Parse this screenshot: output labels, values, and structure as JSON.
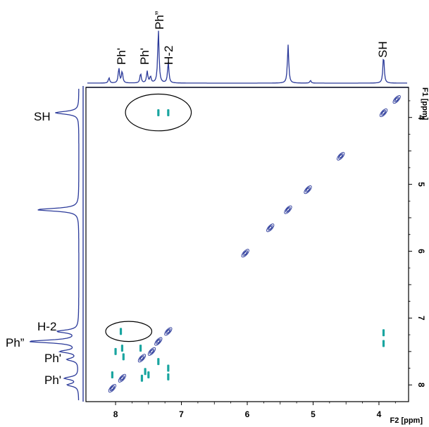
{
  "chart_data": {
    "type": "scatter",
    "subtype": "2D NMR contour spectrum (NOESY-style) with 1D projections",
    "x_axis": {
      "label": "F2 [ppm]",
      "reversed": true,
      "ticks": [
        8,
        7,
        6,
        5,
        4
      ],
      "tick_labels": [
        "8",
        "7",
        "6",
        "5",
        "4"
      ],
      "range": [
        8.45,
        3.55
      ]
    },
    "y_axis": {
      "label": "F1 [ppm]",
      "reversed": true,
      "position": "right",
      "ticks": [
        4,
        5,
        6,
        7,
        8
      ],
      "tick_labels": [
        "4",
        "5",
        "6",
        "7",
        "8"
      ],
      "range": [
        3.55,
        8.25
      ]
    },
    "top_trace_labels": [
      "Ph'",
      "Ph'",
      "Ph”",
      "H-2",
      "SH"
    ],
    "left_trace_labels": [
      "SH",
      "H-2",
      "Ph”",
      "Ph'",
      "Ph'"
    ],
    "diagonal_peaks": [
      {
        "x": 3.73,
        "y": 3.73
      },
      {
        "x": 3.93,
        "y": 3.93
      },
      {
        "x": 4.58,
        "y": 4.58
      },
      {
        "x": 5.08,
        "y": 5.08
      },
      {
        "x": 5.38,
        "y": 5.38
      },
      {
        "x": 5.65,
        "y": 5.65
      },
      {
        "x": 6.03,
        "y": 6.03
      },
      {
        "x": 7.2,
        "y": 7.2
      },
      {
        "x": 7.35,
        "y": 7.35
      },
      {
        "x": 7.45,
        "y": 7.5
      },
      {
        "x": 7.6,
        "y": 7.6
      },
      {
        "x": 7.9,
        "y": 7.9
      },
      {
        "x": 8.05,
        "y": 8.05
      }
    ],
    "cross_peaks": [
      {
        "x": 7.35,
        "y": 3.93
      },
      {
        "x": 7.2,
        "y": 3.93
      },
      {
        "x": 7.92,
        "y": 7.2
      },
      {
        "x": 3.93,
        "y": 7.22
      },
      {
        "x": 3.93,
        "y": 7.38
      },
      {
        "x": 8.0,
        "y": 7.5
      },
      {
        "x": 7.9,
        "y": 7.45
      },
      {
        "x": 7.88,
        "y": 7.58
      },
      {
        "x": 7.62,
        "y": 7.45
      },
      {
        "x": 7.6,
        "y": 7.9
      },
      {
        "x": 7.55,
        "y": 7.8
      },
      {
        "x": 7.5,
        "y": 7.85
      },
      {
        "x": 7.2,
        "y": 7.88
      },
      {
        "x": 7.2,
        "y": 7.75
      },
      {
        "x": 7.35,
        "y": 7.65
      },
      {
        "x": 8.05,
        "y": 7.85
      }
    ],
    "circled_regions": [
      {
        "x_range": [
          7.85,
          6.85
        ],
        "y_range": [
          3.65,
          4.2
        ]
      },
      {
        "x_range": [
          8.15,
          7.45
        ],
        "y_range": [
          7.05,
          7.35
        ]
      }
    ],
    "top_projection_peaks": [
      {
        "ppm": 8.1,
        "height": 0.1
      },
      {
        "ppm": 7.95,
        "height": 0.28
      },
      {
        "ppm": 7.9,
        "height": 0.22
      },
      {
        "ppm": 7.62,
        "height": 0.18
      },
      {
        "ppm": 7.52,
        "height": 0.22
      },
      {
        "ppm": 7.47,
        "height": 0.12
      },
      {
        "ppm": 7.35,
        "height": 1.0
      },
      {
        "ppm": 7.2,
        "height": 0.4
      },
      {
        "ppm": 5.38,
        "height": 0.72
      },
      {
        "ppm": 5.04,
        "height": 0.05
      },
      {
        "ppm": 3.93,
        "height": 0.52
      }
    ],
    "left_projection_peaks": [
      {
        "ppm": 3.93,
        "height": 0.48
      },
      {
        "ppm": 5.38,
        "height": 0.85
      },
      {
        "ppm": 7.2,
        "height": 0.42
      },
      {
        "ppm": 7.35,
        "height": 1.0
      },
      {
        "ppm": 7.5,
        "height": 0.35
      },
      {
        "ppm": 7.62,
        "height": 0.22
      },
      {
        "ppm": 7.9,
        "height": 0.28
      },
      {
        "ppm": 8.0,
        "height": 0.22
      }
    ],
    "colors": {
      "positive_contour": "#2b3a9a",
      "negative_contour": "#1aa5a0",
      "trace": "#2b3a9a",
      "axes": "#000000"
    }
  }
}
